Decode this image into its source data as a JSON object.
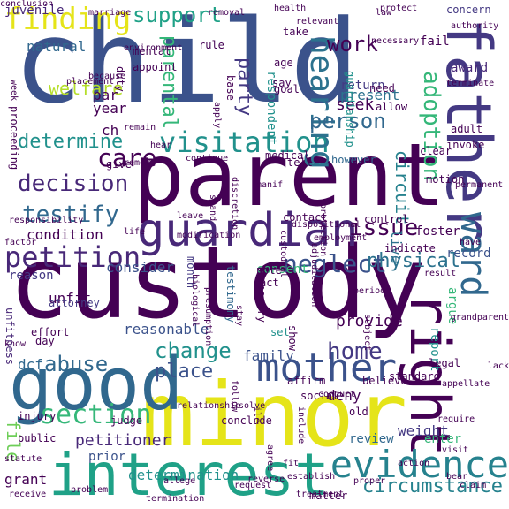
{
  "words": [
    {
      "t": "child",
      "c": "#3b528b"
    },
    {
      "t": "parent",
      "c": "#440154"
    },
    {
      "t": "custody",
      "c": "#440154"
    },
    {
      "t": "minor",
      "c": "#e5e419"
    },
    {
      "t": "interest",
      "c": "#1fa187"
    },
    {
      "t": "good",
      "c": "#31688e"
    },
    {
      "t": "father",
      "c": "#443983"
    },
    {
      "t": "guardian",
      "c": "#482878"
    },
    {
      "t": "right",
      "c": "#440154"
    },
    {
      "t": "ward",
      "c": "#31688e"
    },
    {
      "t": "evidence",
      "c": "#26828e"
    },
    {
      "t": "mother",
      "c": "#3b528b"
    },
    {
      "t": "petition",
      "c": "#482878"
    },
    {
      "t": "visitation",
      "c": "#21918c"
    },
    {
      "t": "hearing",
      "c": "#2c728e"
    },
    {
      "t": "finding",
      "c": "#e5e419"
    },
    {
      "t": "care",
      "c": "#440154"
    },
    {
      "t": "decision",
      "c": "#482878"
    },
    {
      "t": "testify",
      "c": "#31688e"
    },
    {
      "t": "neglect",
      "c": "#3b528b"
    },
    {
      "t": "physical",
      "c": "#2c728e"
    },
    {
      "t": "section",
      "c": "#35b779"
    },
    {
      "t": "home",
      "c": "#443983"
    },
    {
      "t": "abuse",
      "c": "#31688e"
    },
    {
      "t": "change",
      "c": "#21918c"
    },
    {
      "t": "place",
      "c": "#3b528b"
    },
    {
      "t": "adoption",
      "c": "#35b779"
    },
    {
      "t": "support",
      "c": "#1fa187"
    },
    {
      "t": "issue",
      "c": "#440154"
    },
    {
      "t": "work",
      "c": "#440154"
    },
    {
      "t": "party",
      "c": "#443983"
    },
    {
      "t": "person",
      "c": "#31688e"
    },
    {
      "t": "determine",
      "c": "#21918c"
    },
    {
      "t": "parental",
      "c": "#35b779"
    },
    {
      "t": "circuit",
      "c": "#26828e"
    },
    {
      "t": "circumstance",
      "c": "#26828e"
    },
    {
      "t": "file",
      "c": "#6ece58"
    },
    {
      "t": "petitioner",
      "c": "#482878"
    },
    {
      "t": "provide",
      "c": "#440154"
    },
    {
      "t": "seek",
      "c": "#440154"
    },
    {
      "t": "consider",
      "c": "#3b528b"
    },
    {
      "t": "condition",
      "c": "#440154"
    },
    {
      "t": "year",
      "c": "#440154"
    },
    {
      "t": "welfare",
      "c": "#b5de2b"
    },
    {
      "t": "natural",
      "c": "#31688e"
    },
    {
      "t": "juvenile",
      "c": "#482878"
    },
    {
      "t": "par",
      "c": "#440154"
    },
    {
      "t": "ch",
      "c": "#440154"
    },
    {
      "t": "family",
      "c": "#3b528b"
    },
    {
      "t": "report",
      "c": "#21918c"
    },
    {
      "t": "argue",
      "c": "#35b779"
    },
    {
      "t": "deny",
      "c": "#440154"
    },
    {
      "t": "dcf",
      "c": "#31688e"
    },
    {
      "t": "present",
      "c": "#2c728e"
    },
    {
      "t": "return",
      "c": "#443983"
    },
    {
      "t": "appoint",
      "c": "#440154"
    },
    {
      "t": "mental",
      "c": "#440154"
    },
    {
      "t": "respondent",
      "c": "#21918c"
    },
    {
      "t": "consent",
      "c": "#35b779"
    },
    {
      "t": "temporary",
      "c": "#440154"
    },
    {
      "t": "reasonable",
      "c": "#3b528b"
    },
    {
      "t": "unfit",
      "c": "#440154"
    },
    {
      "t": "unfitness",
      "c": "#482878"
    },
    {
      "t": "testimony",
      "c": "#31688e"
    },
    {
      "t": "proceeding",
      "c": "#440154"
    },
    {
      "t": "give",
      "c": "#440154"
    },
    {
      "t": "clear",
      "c": "#440154"
    },
    {
      "t": "weight",
      "c": "#443983"
    },
    {
      "t": "determination",
      "c": "#21918c"
    },
    {
      "t": "grant",
      "c": "#440154"
    },
    {
      "t": "prior",
      "c": "#3b528b"
    },
    {
      "t": "review",
      "c": "#31688e"
    },
    {
      "t": "live",
      "c": "#2c728e"
    },
    {
      "t": "record",
      "c": "#3b528b"
    },
    {
      "t": "month",
      "c": "#443983"
    },
    {
      "t": "indicate",
      "c": "#440154"
    },
    {
      "t": "fail",
      "c": "#440154"
    },
    {
      "t": "award",
      "c": "#482878"
    },
    {
      "t": "set",
      "c": "#21918c"
    },
    {
      "t": "reason",
      "c": "#443983"
    },
    {
      "t": "enter",
      "c": "#35b779"
    },
    {
      "t": "legal",
      "c": "#440154"
    },
    {
      "t": "foster",
      "c": "#440154"
    },
    {
      "t": "act",
      "c": "#440154"
    },
    {
      "t": "attorney",
      "c": "#443983"
    },
    {
      "t": "note",
      "c": "#440154"
    },
    {
      "t": "however",
      "c": "#31688e"
    },
    {
      "t": "concern",
      "c": "#443983"
    },
    {
      "t": "take",
      "c": "#440154"
    },
    {
      "t": "age",
      "c": "#440154"
    },
    {
      "t": "say",
      "c": "#440154"
    },
    {
      "t": "goal",
      "c": "#440154"
    },
    {
      "t": "need",
      "c": "#440154"
    },
    {
      "t": "allow",
      "c": "#440154"
    },
    {
      "t": "adult",
      "c": "#440154"
    },
    {
      "t": "invoke",
      "c": "#440154"
    },
    {
      "t": "motion",
      "c": "#440154"
    },
    {
      "t": "control",
      "c": "#440154"
    },
    {
      "t": "tell",
      "c": "#440154"
    },
    {
      "t": "medical",
      "c": "#440154"
    },
    {
      "t": "contact",
      "c": "#440154"
    },
    {
      "t": "base",
      "c": "#440154"
    },
    {
      "t": "duty",
      "c": "#440154"
    },
    {
      "t": "rule",
      "c": "#440154"
    },
    {
      "t": "guardianship",
      "c": "#21918c"
    },
    {
      "t": "effort",
      "c": "#440154"
    },
    {
      "t": "day",
      "c": "#440154"
    },
    {
      "t": "affirm",
      "c": "#440154"
    },
    {
      "t": "show",
      "c": "#440154"
    },
    {
      "t": "believe",
      "c": "#440154"
    },
    {
      "t": "standard",
      "c": "#440154"
    },
    {
      "t": "appellate",
      "c": "#440154"
    },
    {
      "t": "include",
      "c": "#440154"
    },
    {
      "t": "old",
      "c": "#440154"
    },
    {
      "t": "conclude",
      "c": "#440154"
    },
    {
      "t": "judge",
      "c": "#440154"
    },
    {
      "t": "public",
      "c": "#440154"
    },
    {
      "t": "injury",
      "c": "#440154"
    },
    {
      "t": "problem",
      "c": "#440154"
    },
    {
      "t": "allege",
      "c": "#440154"
    },
    {
      "t": "reverse",
      "c": "#440154"
    },
    {
      "t": "establish",
      "c": "#440154"
    },
    {
      "t": "matter",
      "c": "#440154"
    },
    {
      "t": "action",
      "c": "#440154"
    },
    {
      "t": "visit",
      "c": "#440154"
    },
    {
      "t": "require",
      "c": "#440154"
    },
    {
      "t": "lack",
      "c": "#440154"
    },
    {
      "t": "receive",
      "c": "#440154"
    },
    {
      "t": "termination",
      "c": "#440154"
    },
    {
      "t": "statute",
      "c": "#440154"
    },
    {
      "t": "relationship",
      "c": "#440154"
    },
    {
      "t": "social",
      "c": "#440154"
    },
    {
      "t": "conduct",
      "c": "#440154"
    },
    {
      "t": "know",
      "c": "#440154"
    },
    {
      "t": "remove",
      "c": "#440154"
    },
    {
      "t": "continue",
      "c": "#440154"
    },
    {
      "t": "stand",
      "c": "#440154"
    },
    {
      "t": "discretion",
      "c": "#440154"
    },
    {
      "t": "presumption",
      "c": "#440154"
    },
    {
      "t": "biological",
      "c": "#440154"
    },
    {
      "t": "protection",
      "c": "#440154"
    },
    {
      "t": "factor",
      "c": "#440154"
    },
    {
      "t": "leave",
      "c": "#440154"
    },
    {
      "t": "life",
      "c": "#440154"
    },
    {
      "t": "period",
      "c": "#440154"
    },
    {
      "t": "result",
      "c": "#440154"
    },
    {
      "t": "grandparent",
      "c": "#440154"
    },
    {
      "t": "subject",
      "c": "#440154"
    },
    {
      "t": "follow",
      "c": "#440154"
    },
    {
      "t": "marriage",
      "c": "#440154"
    },
    {
      "t": "removal",
      "c": "#440154"
    },
    {
      "t": "relevant",
      "c": "#440154"
    },
    {
      "t": "health",
      "c": "#440154"
    },
    {
      "t": "law",
      "c": "#440154"
    },
    {
      "t": "authority",
      "c": "#440154"
    },
    {
      "t": "necessary",
      "c": "#440154"
    },
    {
      "t": "terminate",
      "c": "#440154"
    },
    {
      "t": "week",
      "c": "#440154"
    },
    {
      "t": "because",
      "c": "#440154"
    },
    {
      "t": "placement",
      "c": "#440154"
    },
    {
      "t": "environment",
      "c": "#440154"
    },
    {
      "t": "remain",
      "c": "#440154"
    },
    {
      "t": "hear",
      "c": "#440154"
    },
    {
      "t": "apply",
      "c": "#440154"
    },
    {
      "t": "responsibility",
      "c": "#440154"
    },
    {
      "t": "manif",
      "c": "#440154"
    },
    {
      "t": "custodial",
      "c": "#440154"
    },
    {
      "t": "dispositional",
      "c": "#440154"
    },
    {
      "t": "employment",
      "c": "#440154"
    },
    {
      "t": "adjudication",
      "c": "#440154"
    },
    {
      "t": "stay",
      "c": "#440154"
    },
    {
      "t": "ilc",
      "c": "#440154"
    },
    {
      "t": "agree",
      "c": "#440154"
    },
    {
      "t": "solve",
      "c": "#440154"
    },
    {
      "t": "fit",
      "c": "#440154"
    },
    {
      "t": "proper",
      "c": "#440154"
    },
    {
      "t": "claim",
      "c": "#440154"
    },
    {
      "t": "bear",
      "c": "#440154"
    },
    {
      "t": "request",
      "c": "#440154"
    },
    {
      "t": "treatment",
      "c": "#440154"
    },
    {
      "t": "have",
      "c": "#440154"
    },
    {
      "t": "permanent",
      "c": "#440154"
    },
    {
      "t": "protect",
      "c": "#440154"
    },
    {
      "t": "modification",
      "c": "#440154"
    },
    {
      "t": "conclusion",
      "c": "#440154"
    }
  ]
}
